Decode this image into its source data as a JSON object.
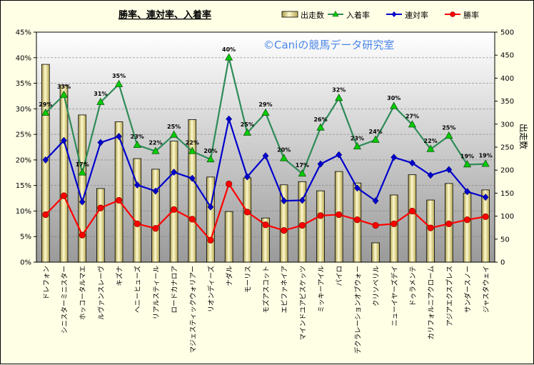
{
  "chart_data": {
    "type": "bar+line",
    "title": "勝率、連対率、入着率",
    "watermark": "©Caniの競馬データ研究室",
    "y_left": {
      "min": 0,
      "max": 45,
      "step": 5,
      "unit": "%",
      "ticks": [
        "0%",
        "5%",
        "10%",
        "15%",
        "20%",
        "25%",
        "30%",
        "35%",
        "40%",
        "45%"
      ]
    },
    "y_right": {
      "min": 0,
      "max": 500,
      "step": 50,
      "label": "出走数",
      "ticks": [
        "0",
        "50",
        "100",
        "150",
        "200",
        "250",
        "300",
        "350",
        "400",
        "450",
        "500"
      ]
    },
    "categories": [
      "ドレフォン",
      "シニスターミニスター",
      "ホッコータルマエ",
      "ルヴァンスレーヴ",
      "キズナ",
      "ヘニーヒューズ",
      "リアルスティール",
      "ロードカナロア",
      "マジェスティックウォリアー",
      "リオンディーズ",
      "ナダル",
      "モーリス",
      "モズアスコット",
      "エピファネイア",
      "マインドユアビスケッツ",
      "ミッキーアイル",
      "パイロ",
      "デクラレーションオブウォー",
      "クリソベリル",
      "ニューイヤーズデイ",
      "ドゥラメンテ",
      "カリフォルニアクローム",
      "アジアエクスプレス",
      "サンダースノー",
      "ジャスタウェイ"
    ],
    "series": [
      {
        "name": "出走数",
        "type": "bar",
        "axis": "right",
        "color": "#f0e68c",
        "values": [
          430,
          385,
          320,
          160,
          305,
          225,
          202,
          263,
          310,
          185,
          110,
          183,
          96,
          168,
          175,
          155,
          197,
          172,
          42,
          146,
          190,
          135,
          171,
          150,
          157
        ]
      },
      {
        "name": "入着率",
        "type": "line",
        "axis": "left",
        "color": "#2e8b57",
        "marker": "#00cc00",
        "values": [
          29.2,
          32.7,
          17.5,
          31.3,
          34.8,
          22.9,
          21.7,
          24.9,
          21.7,
          20.1,
          40.0,
          25.3,
          29.2,
          20.3,
          17.3,
          26.3,
          32.1,
          22.6,
          23.9,
          30.5,
          26.9,
          22.1,
          24.7,
          19.1,
          19.2
        ]
      },
      {
        "name": "連対率",
        "type": "line",
        "axis": "left",
        "color": "#0000cd",
        "values": [
          20.0,
          23.8,
          11.8,
          23.4,
          24.6,
          15.1,
          13.9,
          17.6,
          16.4,
          10.8,
          28.0,
          16.7,
          20.8,
          12.0,
          12.1,
          19.2,
          21.0,
          14.5,
          12.0,
          20.5,
          19.4,
          17.0,
          18.1,
          13.8,
          12.7
        ]
      },
      {
        "name": "勝率",
        "type": "line",
        "axis": "left",
        "color": "#ff0000",
        "values": [
          9.3,
          13.0,
          5.3,
          10.6,
          12.1,
          7.5,
          6.6,
          10.3,
          8.4,
          4.3,
          15.3,
          9.8,
          7.3,
          6.2,
          7.2,
          9.1,
          9.3,
          8.3,
          7.2,
          7.5,
          10.0,
          6.7,
          7.5,
          8.3,
          8.9
        ]
      }
    ],
    "data_labels": [
      "29%",
      "33%",
      "17%",
      "31%",
      "35%",
      "23%",
      "22%",
      "25%",
      "22%",
      "20%",
      "40%",
      "25%",
      "29%",
      "20%",
      "17%",
      "26%",
      "32%",
      "23%",
      "24%",
      "30%",
      "27%",
      "22%",
      "25%",
      "19%",
      "19%"
    ],
    "legend": [
      "出走数",
      "入着率",
      "連対率",
      "勝率"
    ]
  }
}
